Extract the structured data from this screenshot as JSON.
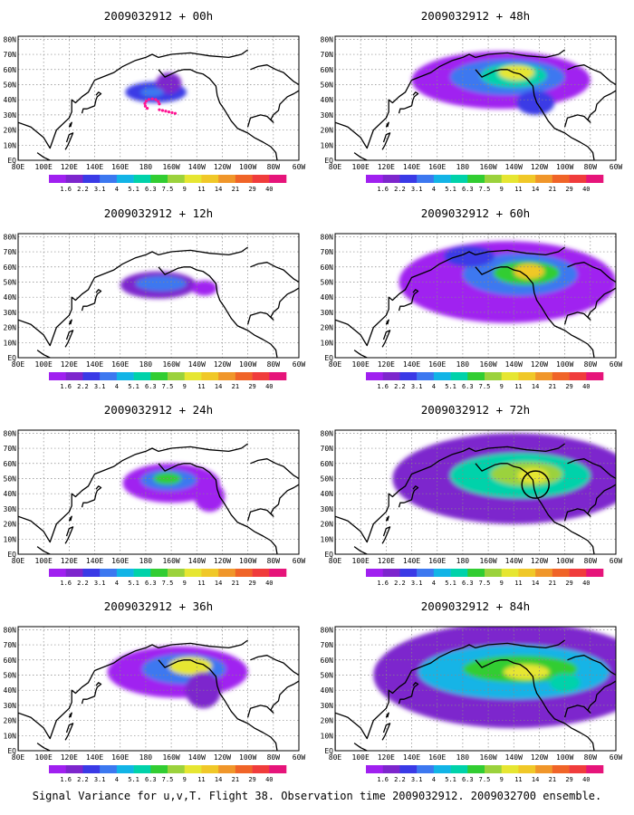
{
  "figure": {
    "caption": "Signal Variance for u,v,T. Flight 38. Observation time 2009032912. 2009032700 ensemble."
  },
  "colorbar": {
    "levels": [
      "1.6",
      "2.2",
      "3.1",
      "4",
      "5.1",
      "6.3",
      "7.5",
      "9",
      "11",
      "14",
      "21",
      "29",
      "40"
    ],
    "colors": [
      "#a020f0",
      "#7d26cd",
      "#3a3ae6",
      "#3c78f0",
      "#12b4e6",
      "#00d2aa",
      "#32cd32",
      "#9bd23c",
      "#e6e632",
      "#f0c828",
      "#f0962a",
      "#f06428",
      "#f03c3c",
      "#e6147a"
    ]
  },
  "map": {
    "lat_labels": [
      "80N",
      "70N",
      "60N",
      "50N",
      "40N",
      "30N",
      "20N",
      "10N",
      "EQ"
    ],
    "lon_labels": [
      "80E",
      "100E",
      "120E",
      "140E",
      "160E",
      "180",
      "160W",
      "140W",
      "120W",
      "100W",
      "80W",
      "60W"
    ],
    "coast_color": "#000000",
    "grid": "dotted"
  },
  "chart_data": [
    {
      "type": "heatmap",
      "title": "2009032912 + 00h",
      "lead_hours": 0,
      "blobs": [
        {
          "lon": -172,
          "lat": 45,
          "rx": 24,
          "ry": 7,
          "level": 2
        },
        {
          "lon": -162,
          "lat": 51,
          "rx": 10,
          "ry": 7,
          "level": 1
        },
        {
          "lon": -175,
          "lat": 45,
          "rx": 9,
          "ry": 3,
          "level": 3
        }
      ],
      "marker": {
        "lon": -175,
        "lat": 37,
        "color": "#ff1493",
        "style": "dots"
      }
    },
    {
      "type": "heatmap",
      "title": "2009032912 + 48h",
      "lead_hours": 48,
      "blobs": [
        {
          "lon": -150,
          "lat": 53,
          "rx": 70,
          "ry": 19,
          "level": 0
        },
        {
          "lon": -145,
          "lat": 55,
          "rx": 45,
          "ry": 12,
          "level": 3
        },
        {
          "lon": -140,
          "lat": 56,
          "rx": 26,
          "ry": 8,
          "level": 5
        },
        {
          "lon": -138,
          "lat": 58,
          "rx": 14,
          "ry": 5,
          "level": 8
        },
        {
          "lon": -123,
          "lat": 38,
          "rx": 15,
          "ry": 8,
          "level": 2
        }
      ]
    },
    {
      "type": "heatmap",
      "title": "2009032912 + 12h",
      "lead_hours": 12,
      "blobs": [
        {
          "lon": -170,
          "lat": 48,
          "rx": 30,
          "ry": 9,
          "level": 1
        },
        {
          "lon": -168,
          "lat": 49,
          "rx": 20,
          "ry": 5,
          "level": 3
        },
        {
          "lon": -134,
          "lat": 46,
          "rx": 10,
          "ry": 5,
          "level": 0
        }
      ]
    },
    {
      "type": "heatmap",
      "title": "2009032912 + 60h",
      "lead_hours": 60,
      "blobs": [
        {
          "lon": -145,
          "lat": 50,
          "rx": 85,
          "ry": 27,
          "level": 0
        },
        {
          "lon": -135,
          "lat": 55,
          "rx": 45,
          "ry": 14,
          "level": 3
        },
        {
          "lon": -130,
          "lat": 56,
          "rx": 26,
          "ry": 8,
          "level": 6
        },
        {
          "lon": -128,
          "lat": 57,
          "rx": 12,
          "ry": 5,
          "level": 9
        },
        {
          "lon": -175,
          "lat": 67,
          "rx": 20,
          "ry": 7,
          "level": 2
        }
      ]
    },
    {
      "type": "heatmap",
      "title": "2009032912 + 24h",
      "lead_hours": 24,
      "blobs": [
        {
          "lon": -160,
          "lat": 47,
          "rx": 38,
          "ry": 13,
          "level": 0
        },
        {
          "lon": -162,
          "lat": 49,
          "rx": 22,
          "ry": 7,
          "level": 3
        },
        {
          "lon": -163,
          "lat": 50,
          "rx": 11,
          "ry": 4,
          "level": 6
        },
        {
          "lon": -130,
          "lat": 38,
          "rx": 12,
          "ry": 10,
          "level": 0
        }
      ]
    },
    {
      "type": "heatmap",
      "title": "2009032912 + 72h",
      "lead_hours": 72,
      "blobs": [
        {
          "lon": -140,
          "lat": 50,
          "rx": 95,
          "ry": 30,
          "level": 1
        },
        {
          "lon": -135,
          "lat": 52,
          "rx": 55,
          "ry": 15,
          "level": 5
        },
        {
          "lon": -130,
          "lat": 53,
          "rx": 28,
          "ry": 8,
          "level": 7
        },
        {
          "lon": -125,
          "lat": 52,
          "rx": 12,
          "ry": 5,
          "level": 8
        }
      ],
      "marker": {
        "lon": -123,
        "lat": 46,
        "color": "#000000",
        "style": "circle"
      }
    },
    {
      "type": "heatmap",
      "title": "2009032912 + 36h",
      "lead_hours": 36,
      "blobs": [
        {
          "lon": -155,
          "lat": 52,
          "rx": 55,
          "ry": 17,
          "level": 0
        },
        {
          "lon": -150,
          "lat": 54,
          "rx": 33,
          "ry": 10,
          "level": 3
        },
        {
          "lon": -145,
          "lat": 56,
          "rx": 17,
          "ry": 6,
          "level": 8
        },
        {
          "lon": -135,
          "lat": 40,
          "rx": 14,
          "ry": 12,
          "level": 1
        }
      ]
    },
    {
      "type": "heatmap",
      "title": "2009032912 + 84h",
      "lead_hours": 84,
      "blobs": [
        {
          "lon": -140,
          "lat": 50,
          "rx": 110,
          "ry": 35,
          "level": 1
        },
        {
          "lon": -140,
          "lat": 52,
          "rx": 75,
          "ry": 18,
          "level": 4
        },
        {
          "lon": -135,
          "lat": 54,
          "rx": 45,
          "ry": 9,
          "level": 6
        },
        {
          "lon": -130,
          "lat": 52,
          "rx": 18,
          "ry": 5,
          "level": 8
        },
        {
          "lon": -100,
          "lat": 45,
          "rx": 12,
          "ry": 6,
          "level": 5
        }
      ]
    }
  ]
}
